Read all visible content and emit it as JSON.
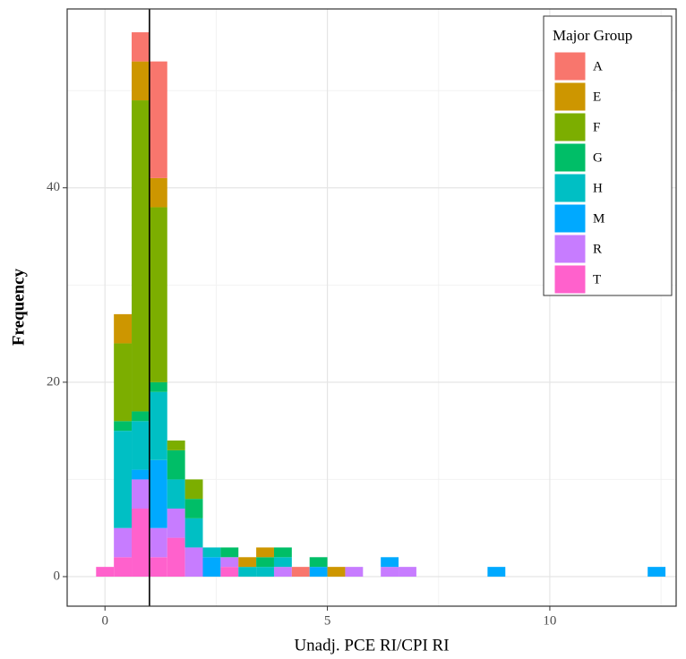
{
  "chart_data": {
    "type": "stacked_histogram",
    "x_label": "Unadj. PCE RI/CPI RI",
    "y_label": "Frequency",
    "legend_title": "Major Group",
    "legend_position": "top-right",
    "bins": [
      -0.2,
      0.2,
      0.6,
      1.0,
      1.4,
      1.8,
      2.2,
      2.6,
      3.0,
      3.4,
      3.8,
      4.2,
      4.6,
      5.0,
      5.4,
      5.8,
      6.2,
      6.6,
      7.0,
      7.4,
      7.8,
      8.2,
      8.6,
      9.0,
      9.4,
      9.8,
      10.2,
      10.6,
      11.0,
      11.4,
      11.8,
      12.2,
      12.6
    ],
    "series": [
      {
        "name": "A",
        "color": "#F8766D",
        "values": [
          0,
          0,
          3,
          12,
          0,
          0,
          0,
          0,
          0,
          0,
          0,
          1,
          0,
          0,
          0,
          0,
          0,
          0,
          0,
          0,
          0,
          0,
          0,
          0,
          0,
          0,
          0,
          0,
          0,
          0,
          0,
          0
        ]
      },
      {
        "name": "E",
        "color": "#CD9600",
        "values": [
          0,
          3,
          4,
          3,
          0,
          0,
          0,
          0,
          1,
          1,
          0,
          0,
          0,
          1,
          0,
          0,
          0,
          0,
          0,
          0,
          0,
          0,
          0,
          0,
          0,
          0,
          0,
          0,
          0,
          0,
          0,
          0
        ]
      },
      {
        "name": "F",
        "color": "#7CAE00",
        "values": [
          0,
          8,
          32,
          18,
          1,
          2,
          0,
          0,
          0,
          0,
          0,
          0,
          0,
          0,
          0,
          0,
          0,
          0,
          0,
          0,
          0,
          0,
          0,
          0,
          0,
          0,
          0,
          0,
          0,
          0,
          0,
          0
        ]
      },
      {
        "name": "G",
        "color": "#00BE67",
        "values": [
          0,
          1,
          1,
          1,
          3,
          2,
          0,
          1,
          0,
          1,
          1,
          0,
          1,
          0,
          0,
          0,
          0,
          0,
          0,
          0,
          0,
          0,
          0,
          0,
          0,
          0,
          0,
          0,
          0,
          0,
          0,
          0
        ]
      },
      {
        "name": "H",
        "color": "#00BFC4",
        "values": [
          0,
          10,
          5,
          7,
          3,
          3,
          1,
          0,
          1,
          1,
          1,
          0,
          0,
          0,
          0,
          0,
          0,
          0,
          0,
          0,
          0,
          0,
          0,
          0,
          0,
          0,
          0,
          0,
          0,
          0,
          0,
          0
        ]
      },
      {
        "name": "M",
        "color": "#00A9FF",
        "values": [
          0,
          0,
          1,
          7,
          0,
          0,
          2,
          0,
          0,
          0,
          0,
          0,
          1,
          0,
          0,
          0,
          1,
          0,
          0,
          0,
          0,
          0,
          1,
          0,
          0,
          0,
          0,
          0,
          0,
          0,
          0,
          1
        ]
      },
      {
        "name": "R",
        "color": "#C77CFF",
        "values": [
          0,
          3,
          3,
          3,
          3,
          3,
          0,
          1,
          0,
          0,
          1,
          0,
          0,
          0,
          1,
          0,
          1,
          1,
          0,
          0,
          0,
          0,
          0,
          0,
          0,
          0,
          0,
          0,
          0,
          0,
          0,
          0
        ]
      },
      {
        "name": "T",
        "color": "#FF61CC",
        "values": [
          1,
          2,
          7,
          2,
          4,
          0,
          0,
          1,
          0,
          0,
          0,
          0,
          0,
          0,
          0,
          0,
          0,
          0,
          0,
          0,
          0,
          0,
          0,
          0,
          0,
          0,
          0,
          0,
          0,
          0,
          0,
          0
        ]
      }
    ],
    "vline": 1,
    "xlim": [
      -0.85,
      12.84
    ],
    "ylim": [
      -3.04,
      58.4
    ],
    "xticks": [
      0,
      5,
      10
    ],
    "yticks": [
      0,
      20,
      40
    ],
    "minor_xticks": [
      2.5,
      7.5,
      12.5
    ],
    "minor_yticks": [
      10,
      30,
      50
    ],
    "grid": true
  }
}
